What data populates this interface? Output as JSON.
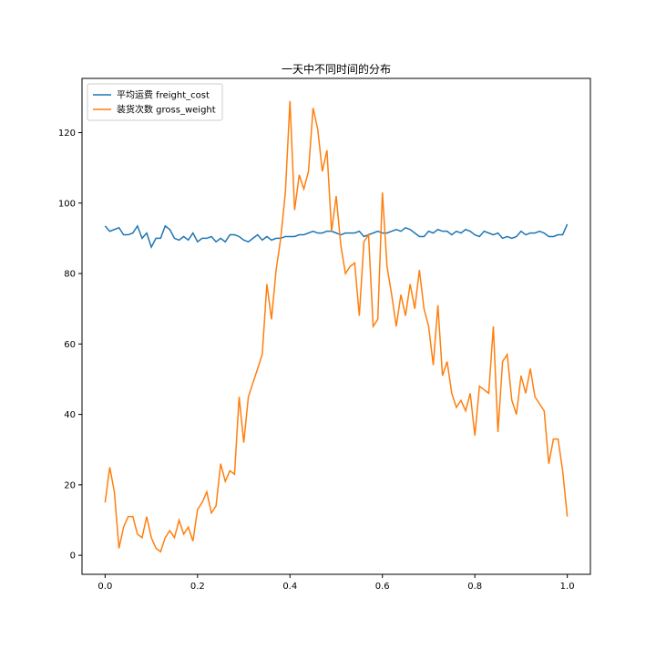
{
  "chart_data": {
    "type": "line",
    "title": "一天中不同时间的分布",
    "x": [
      0,
      0.01,
      0.02,
      0.03,
      0.04,
      0.05,
      0.06,
      0.07,
      0.08,
      0.09,
      0.1,
      0.11,
      0.12,
      0.13,
      0.14,
      0.15,
      0.16,
      0.17,
      0.18,
      0.19,
      0.2,
      0.21,
      0.22,
      0.23,
      0.24,
      0.25,
      0.26,
      0.27,
      0.28,
      0.29,
      0.3,
      0.31,
      0.32,
      0.33,
      0.34,
      0.35,
      0.36,
      0.37,
      0.38,
      0.39,
      0.4,
      0.41,
      0.42,
      0.43,
      0.44,
      0.45,
      0.46,
      0.47,
      0.48,
      0.49,
      0.5,
      0.51,
      0.52,
      0.53,
      0.54,
      0.55,
      0.56,
      0.57,
      0.58,
      0.59,
      0.6,
      0.61,
      0.62,
      0.63,
      0.64,
      0.65,
      0.66,
      0.67,
      0.68,
      0.69,
      0.7,
      0.71,
      0.72,
      0.73,
      0.74,
      0.75,
      0.76,
      0.77,
      0.78,
      0.79,
      0.8,
      0.81,
      0.82,
      0.83,
      0.84,
      0.85,
      0.86,
      0.87,
      0.88,
      0.89,
      0.9,
      0.91,
      0.92,
      0.93,
      0.94,
      0.95,
      0.96,
      0.97,
      0.98,
      0.99,
      1.0
    ],
    "series": [
      {
        "name": "平均运费 freight_cost",
        "color": "#1f77b4",
        "values": [
          93.5,
          92,
          92.5,
          93,
          91,
          91,
          91.5,
          93.5,
          90,
          91.5,
          87.5,
          90,
          90,
          93.5,
          92.5,
          90,
          89.5,
          90.5,
          89.5,
          91.5,
          89,
          90,
          90,
          90.5,
          89,
          90,
          89,
          91,
          91,
          90.5,
          89.5,
          89,
          90,
          91,
          89.5,
          90.5,
          89.5,
          90,
          90,
          90.5,
          90.5,
          90.5,
          91,
          91,
          91.5,
          92,
          91.5,
          91.5,
          92,
          92,
          91.5,
          91,
          91.5,
          91.5,
          91.5,
          92,
          90.5,
          91,
          91.5,
          92,
          91.5,
          91.5,
          92,
          92.5,
          92,
          93,
          92.5,
          91.5,
          90.5,
          90.5,
          92,
          91.5,
          92.5,
          92,
          92,
          91,
          92,
          91.5,
          92.5,
          92,
          91,
          90.5,
          92,
          91.5,
          91,
          91.5,
          90,
          90.5,
          90,
          90.5,
          92,
          91,
          91.5,
          91.5,
          92,
          91.5,
          90.5,
          90.5,
          91,
          91,
          94
        ]
      },
      {
        "name": "装货次数 gross_weight",
        "color": "#ff7f0e",
        "values": [
          15,
          25,
          18,
          2,
          8,
          11,
          11,
          6,
          5,
          11,
          5,
          2,
          1,
          5,
          7,
          5,
          10,
          6,
          8,
          4,
          13,
          15,
          18,
          12,
          14,
          26,
          21,
          24,
          23,
          45,
          32,
          45,
          49,
          53,
          57,
          77,
          67,
          81,
          90,
          103,
          129,
          98,
          108,
          104,
          109,
          127,
          121,
          109,
          115,
          92,
          102,
          88,
          80,
          82,
          83,
          68,
          89,
          91,
          65,
          67,
          103,
          82,
          74,
          65,
          74,
          68,
          77,
          70,
          81,
          70,
          65,
          54,
          71,
          51,
          55,
          46,
          42,
          44,
          41,
          46,
          34,
          48,
          47,
          46,
          65,
          35,
          55,
          57,
          44,
          40,
          51,
          46,
          53,
          45,
          43,
          41,
          26,
          33,
          33,
          24,
          11
        ]
      }
    ],
    "xlim": [
      -0.05,
      1.05
    ],
    "ylim": [
      -5.4,
      135.4
    ],
    "xticks": [
      {
        "value": 0,
        "label": "0.0"
      },
      0.2,
      0.4,
      0.6,
      0.8,
      {
        "value": 1,
        "label": "1.0"
      }
    ],
    "yticks": [
      0,
      20,
      40,
      60,
      80,
      100,
      120
    ],
    "legend": "upper left"
  }
}
